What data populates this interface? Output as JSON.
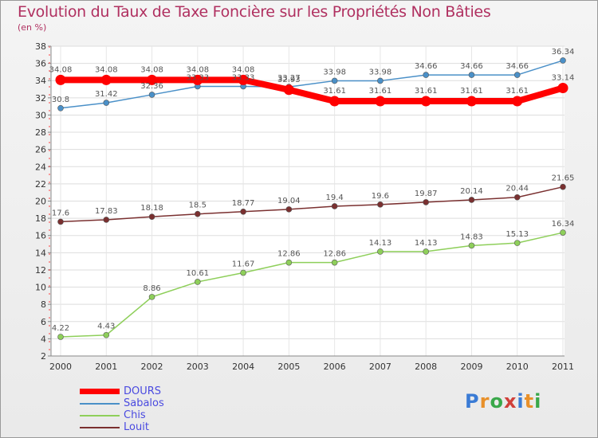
{
  "header": {
    "title": "Evolution du Taux de Taxe Foncière sur les Propriétés Non Bâties",
    "subtitle": "(en %)"
  },
  "logo": {
    "letters": [
      "P",
      "r",
      "o",
      "x",
      "i",
      "t",
      "i"
    ],
    "colors": [
      "#3a7bd5",
      "#e8902a",
      "#3aa84a",
      "#d0403a",
      "#3a7bd5",
      "#e8902a",
      "#3aa84a"
    ]
  },
  "chart_data": {
    "type": "line",
    "title": "Evolution du Taux de Taxe Foncière sur les Propriétés Non Bâties",
    "ylabel": "(en %)",
    "xlabel": "",
    "x": [
      "2000",
      "2001",
      "2002",
      "2003",
      "2004",
      "2005",
      "2006",
      "2007",
      "2008",
      "2009",
      "2010",
      "2011"
    ],
    "ylim": [
      2,
      38
    ],
    "yticks": [
      2,
      4,
      6,
      8,
      10,
      12,
      14,
      16,
      18,
      20,
      22,
      24,
      26,
      28,
      30,
      32,
      34,
      36,
      38
    ],
    "grid": true,
    "legend_position": "bottom-left",
    "series": [
      {
        "name": "DOURS",
        "color": "#ff0000",
        "values": [
          34.08,
          34.08,
          34.08,
          34.08,
          34.08,
          32.93,
          31.61,
          31.61,
          31.61,
          31.61,
          31.61,
          33.14
        ],
        "labels": [
          "34.08",
          "34.08",
          "34.08",
          "34.08",
          "34.08",
          "32.93",
          "31.61",
          "31.61",
          "31.61",
          "31.61",
          "31.61",
          "33.14"
        ]
      },
      {
        "name": "Sabalos",
        "color": "#4a90c8",
        "values": [
          30.8,
          31.42,
          32.36,
          33.33,
          33.33,
          33.27,
          33.98,
          33.98,
          34.66,
          34.66,
          34.66,
          36.34
        ],
        "labels": [
          "30.8",
          "31.42",
          "32.36",
          "33.33",
          "33.33",
          "33.27",
          "33.98",
          "33.98",
          "34.66",
          "34.66",
          "34.66",
          "36.34"
        ]
      },
      {
        "name": "Chis",
        "color": "#8ecf5a",
        "values": [
          4.22,
          4.43,
          8.86,
          10.61,
          11.67,
          12.86,
          12.86,
          14.13,
          14.13,
          14.83,
          15.13,
          16.34
        ],
        "labels": [
          "4.22",
          "4.43",
          "8.86",
          "10.61",
          "11.67",
          "12.86",
          "12.86",
          "14.13",
          "14.13",
          "14.83",
          "15.13",
          "16.34"
        ]
      },
      {
        "name": "Louit",
        "color": "#7a3030",
        "values": [
          17.6,
          17.83,
          18.18,
          18.5,
          18.77,
          19.04,
          19.4,
          19.6,
          19.87,
          20.14,
          20.44,
          21.65
        ],
        "labels": [
          "17.6",
          "17.83",
          "18.18",
          "18.5",
          "18.77",
          "19.04",
          "19.4",
          "19.6",
          "19.87",
          "20.14",
          "20.44",
          "21.65"
        ]
      }
    ]
  }
}
